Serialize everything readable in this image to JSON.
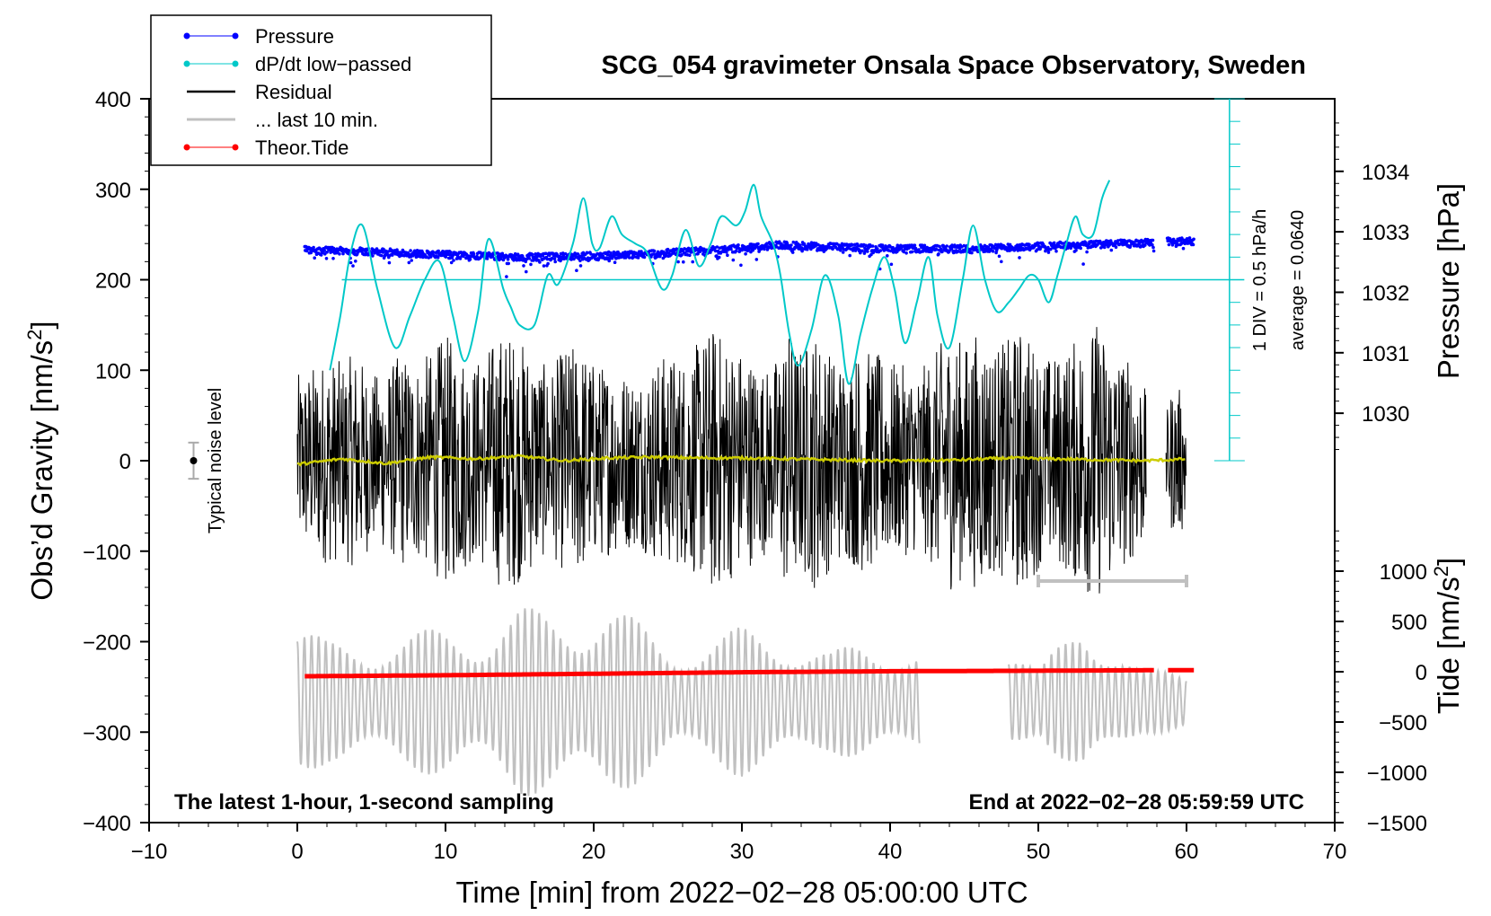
{
  "chart_data": {
    "type": "line",
    "title": "SCG_054 gravimeter Onsala Space Observatory, Sweden",
    "xlabel": "Time [min] from 2022−02−28 05:00:00 UTC",
    "ylabel_left": "Obs’d Gravity [nm/s²]",
    "ylabel_left_base": "Obs’d Gravity [nm/s",
    "ylabel_left_exp": "2",
    "ylabel_left_close": "]",
    "ylabel_right_pressure": "Pressure [hPa]",
    "ylabel_right_tide": "Tide [nm/s²]",
    "ylabel_right_tide_base": "Tide [nm/s",
    "ylabel_right_tide_exp": "2",
    "ylabel_right_tide_close": "]",
    "xlim": [
      -10,
      70
    ],
    "ylim": [
      -400,
      400
    ],
    "x_ticks": [
      -10,
      0,
      10,
      20,
      30,
      40,
      50,
      60,
      70
    ],
    "x_tick_labels": [
      "−10",
      "0",
      "10",
      "20",
      "30",
      "40",
      "50",
      "60",
      "70"
    ],
    "y_ticks": [
      400,
      300,
      200,
      100,
      0,
      -100,
      -200,
      -300,
      -400
    ],
    "y_tick_labels": [
      "400",
      "300",
      "200",
      "100",
      "0",
      "−100",
      "−200",
      "−300",
      "−400"
    ],
    "pressure_axis": {
      "range_hpa": [
        1029.2,
        1035.2
      ],
      "ticks": [
        1034,
        1033,
        1032,
        1031,
        1030
      ],
      "tick_labels": [
        "1034",
        "1033",
        "1032",
        "1031",
        "1030"
      ]
    },
    "tide_axis": {
      "range": [
        -1500,
        1500
      ],
      "ticks": [
        1000,
        500,
        0,
        -500,
        -1000,
        -1500
      ],
      "tick_labels": [
        "1000",
        "500",
        "0",
        "−500",
        "−1000",
        "−1500"
      ]
    },
    "dpdt_scale": {
      "label_div": "1 DIV = 0.5 hPa/h",
      "label_avg": "average = 0.0640",
      "baseline_gravity_equiv": 200,
      "div_count": 16
    },
    "noise_label": "Typical noise level",
    "noise_level": {
      "x": -7,
      "center": 0,
      "half_range": 20
    },
    "last10_bar": {
      "x_start": 50,
      "x_end": 60,
      "y": -133
    },
    "annotation_left": "The latest 1-hour, 1-second sampling",
    "annotation_right": "End at 2022−02−28 05:59:59 UTC",
    "legend": [
      {
        "label": "Pressure",
        "color": "#0000ff",
        "marker": "dot"
      },
      {
        "label": "dP/dt low−passed",
        "color": "#00c8c8",
        "marker": "dot"
      },
      {
        "label": "Residual",
        "color": "#000000",
        "marker": "line"
      },
      {
        "label": "... last 10 min.",
        "color": "#c0c0c0",
        "marker": "line"
      },
      {
        "label": "Theor.Tide",
        "color": "#ff0000",
        "marker": "dot"
      }
    ],
    "series": [
      {
        "name": "dP/dt low−passed",
        "color": "#00c8c8",
        "x": [
          2.2,
          2.9,
          3.6,
          4.4,
          5.4,
          6.6,
          7.6,
          8.6,
          9.6,
          10.5,
          11.3,
          12.2,
          12.9,
          13.9,
          14.4,
          15.0,
          16.0,
          16.9,
          17.6,
          18.6,
          19.3,
          19.9,
          20.4,
          21.2,
          21.9,
          22.8,
          23.6,
          24.6,
          25.3,
          26.2,
          27.1,
          27.9,
          28.6,
          29.6,
          30.2,
          30.8,
          31.3,
          32.1,
          32.6,
          33.2,
          33.8,
          34.7,
          35.6,
          36.5,
          37.2,
          38.0,
          38.8,
          39.6,
          40.3,
          41.0,
          41.8,
          42.6,
          43.2,
          44.0,
          44.9,
          45.6,
          46.4,
          47.2,
          48.0,
          48.7,
          49.4,
          50.0,
          50.7,
          51.3,
          51.9,
          52.5,
          53.0,
          53.7,
          54.3,
          54.8
        ],
        "y": [
          100,
          160,
          230,
          260,
          190,
          125,
          160,
          200,
          220,
          160,
          110,
          165,
          245,
          190,
          170,
          150,
          150,
          205,
          195,
          240,
          290,
          240,
          235,
          270,
          250,
          240,
          230,
          190,
          205,
          255,
          215,
          240,
          270,
          260,
          275,
          305,
          270,
          240,
          205,
          140,
          105,
          145,
          205,
          160,
          85,
          140,
          190,
          225,
          190,
          130,
          175,
          225,
          160,
          125,
          200,
          260,
          200,
          165,
          175,
          190,
          205,
          200,
          175,
          205,
          240,
          270,
          250,
          250,
          290,
          310
        ]
      },
      {
        "name": "Pressure",
        "color": "#0000ff",
        "x": [
          0.5,
          5,
          10,
          15,
          20,
          25,
          30,
          32.5,
          35,
          40,
          45,
          50,
          55,
          57.5,
          58.7,
          60.5
        ],
        "y_hpa": [
          1032.7,
          1032.67,
          1032.62,
          1032.58,
          1032.6,
          1032.65,
          1032.73,
          1032.78,
          1032.76,
          1032.72,
          1032.72,
          1032.76,
          1032.8,
          1032.82,
          1032.84,
          1032.84
        ],
        "gap": [
          57.8,
          58.7
        ]
      },
      {
        "name": "Theor.Tide",
        "color": "#ff0000",
        "x": [
          0.5,
          10,
          20,
          30,
          40,
          50,
          57.5,
          58.7,
          60.5
        ],
        "y_tide": [
          -45,
          -35,
          -20,
          -5,
          5,
          10,
          15,
          15,
          15
        ],
        "gap": [
          57.8,
          58.7
        ]
      },
      {
        "name": "Residual",
        "color": "#000000",
        "x_range": [
          0,
          60
        ],
        "envelope_nodes_x": [
          0,
          1,
          2,
          3,
          4,
          5,
          6,
          7,
          8,
          9,
          10,
          11,
          12,
          13,
          14,
          15,
          16,
          17,
          18,
          19,
          20,
          21,
          22,
          23,
          24,
          25,
          26,
          27,
          28,
          29,
          30,
          31,
          32,
          33,
          34,
          35,
          36,
          37,
          38,
          39,
          40,
          41,
          42,
          43,
          44,
          45,
          46,
          47,
          48,
          49,
          50,
          51,
          52,
          53,
          54,
          55,
          56,
          57,
          58,
          59,
          60
        ],
        "envelope_amplitude": [
          95,
          105,
          115,
          110,
          120,
          95,
          100,
          120,
          110,
          120,
          140,
          125,
          110,
          130,
          145,
          135,
          120,
          100,
          125,
          130,
          110,
          105,
          100,
          95,
          110,
          120,
          115,
          130,
          150,
          135,
          125,
          110,
          100,
          150,
          125,
          145,
          120,
          110,
          125,
          120,
          110,
          105,
          100,
          120,
          145,
          130,
          145,
          125,
          135,
          150,
          120,
          115,
          125,
          145,
          155,
          130,
          115,
          100,
          0,
          80,
          80
        ],
        "gap": [
          57.3,
          58.6
        ]
      },
      {
        "name": "Residual smoothed",
        "color": "#cccc00",
        "x": [
          0,
          3,
          6,
          9,
          12,
          15,
          18,
          21,
          24,
          27,
          30,
          33,
          36,
          39,
          42,
          45,
          48,
          51,
          54,
          57,
          59,
          60
        ],
        "y": [
          -4,
          2,
          -3,
          4,
          2,
          5,
          0,
          3,
          4,
          3,
          3,
          2,
          1,
          0,
          0,
          1,
          3,
          2,
          1,
          0,
          1,
          2
        ]
      },
      {
        "name": "... last 10 min.",
        "color": "#c0c0c0",
        "x_range": [
          0,
          60
        ],
        "period_min": 0.48,
        "segments": [
          [
            0,
            42.0
          ],
          [
            48.0,
            60.0
          ]
        ],
        "envelope_nodes_x": [
          0,
          2,
          5,
          8,
          10,
          13,
          15,
          17,
          20,
          21,
          25,
          28,
          30,
          33,
          36,
          38,
          40,
          42,
          48,
          50,
          52,
          53,
          55,
          57,
          60
        ],
        "envelope_amplitude_tide": [
          800,
          600,
          650,
          700,
          750,
          800,
          950,
          900,
          1000,
          1000,
          600,
          650,
          750,
          700,
          500,
          600,
          600,
          550,
          650,
          300,
          700,
          950,
          600,
          300,
          350
        ]
      }
    ]
  }
}
